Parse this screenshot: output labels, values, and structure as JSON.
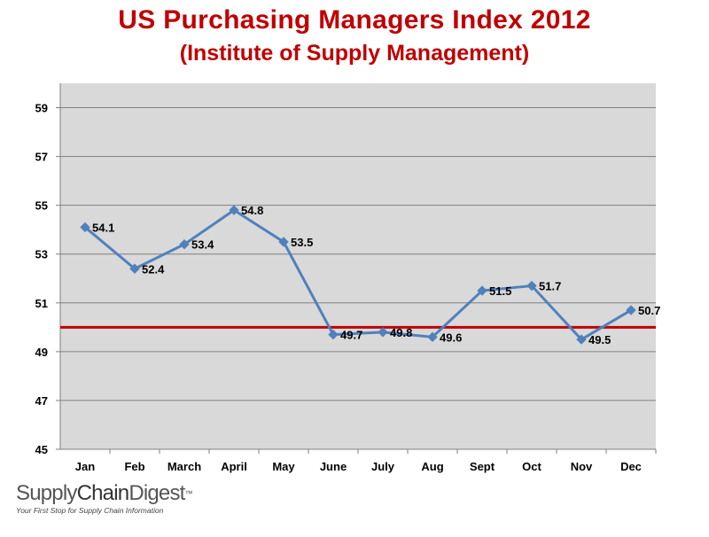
{
  "title": "US Purchasing Managers Index 2012",
  "subtitle": "(Institute of Supply Management)",
  "brand": {
    "name_part1": "Supply",
    "name_part2": "Chain",
    "name_part3": "Digest",
    "trademark": "™",
    "tagline": "Your First Stop for Supply Chain Information"
  },
  "colors": {
    "title": "#c00000",
    "series_line": "#4f81bd",
    "reference_line": "#c00000",
    "plot_background": "#d9d9d9",
    "gridline": "#7f7f7f"
  },
  "chart_data": {
    "type": "line",
    "categories": [
      "Jan",
      "Feb",
      "March",
      "April",
      "May",
      "June",
      "July",
      "Aug",
      "Sept",
      "Oct",
      "Nov",
      "Dec"
    ],
    "series": [
      {
        "values": [
          54.1,
          52.4,
          53.4,
          54.8,
          53.5,
          49.7,
          49.8,
          49.6,
          51.5,
          51.7,
          49.5,
          50.7
        ]
      }
    ],
    "data_labels": [
      "54.1",
      "52.4",
      "53.4",
      "54.8",
      "53.5",
      "49.7",
      "49.8",
      "49.6",
      "51.5",
      "51.7",
      "49.5",
      "50.7"
    ],
    "reference_line": 50,
    "ylim": [
      45,
      60
    ],
    "yticks": [
      45,
      47,
      49,
      51,
      53,
      55,
      57,
      59
    ],
    "grid": true,
    "legend": "none"
  }
}
